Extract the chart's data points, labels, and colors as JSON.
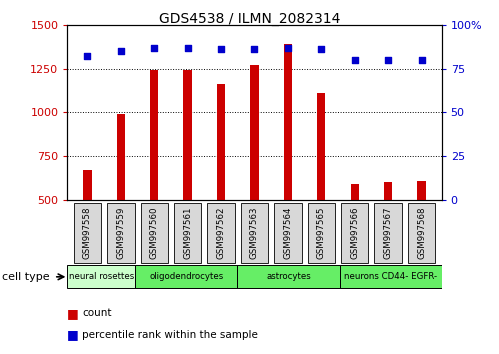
{
  "title": "GDS4538 / ILMN_2082314",
  "samples": [
    "GSM997558",
    "GSM997559",
    "GSM997560",
    "GSM997561",
    "GSM997562",
    "GSM997563",
    "GSM997564",
    "GSM997565",
    "GSM997566",
    "GSM997567",
    "GSM997568"
  ],
  "counts": [
    670,
    990,
    1240,
    1240,
    1160,
    1270,
    1390,
    1110,
    590,
    600,
    610
  ],
  "percentiles": [
    82,
    85,
    87,
    87,
    86,
    86,
    87,
    86,
    80,
    80,
    80
  ],
  "ylim_left": [
    500,
    1500
  ],
  "ylim_right": [
    0,
    100
  ],
  "yticks_left": [
    500,
    750,
    1000,
    1250,
    1500
  ],
  "yticks_right": [
    0,
    25,
    50,
    75,
    100
  ],
  "cell_groups": [
    {
      "label": "neural rosettes",
      "start": 0,
      "end": 2,
      "color": "#ccffcc"
    },
    {
      "label": "oligodendrocytes",
      "start": 2,
      "end": 5,
      "color": "#66ee66"
    },
    {
      "label": "astrocytes",
      "start": 5,
      "end": 8,
      "color": "#66ee66"
    },
    {
      "label": "neurons CD44- EGFR-",
      "start": 8,
      "end": 11,
      "color": "#66ee66"
    }
  ],
  "bar_color": "#cc0000",
  "dot_color": "#0000cc",
  "background_color": "#ffffff",
  "plot_bg_color": "#ffffff",
  "tick_box_color": "#d8d8d8",
  "ylabel_left_color": "#cc0000",
  "ylabel_right_color": "#0000cc",
  "legend_count_color": "#cc0000",
  "legend_pct_color": "#0000cc",
  "bar_width": 0.25
}
